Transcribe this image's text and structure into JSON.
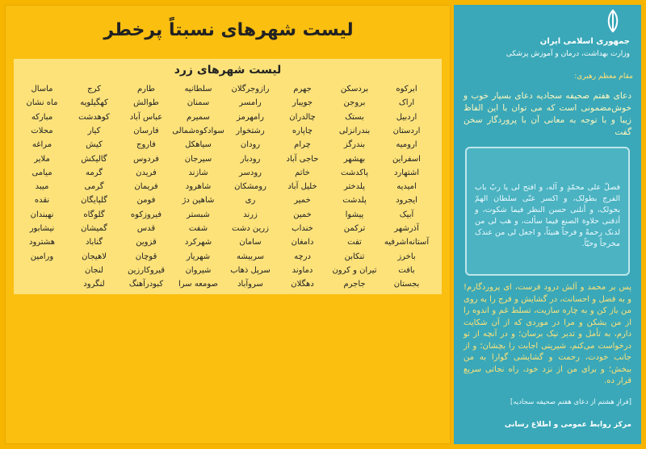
{
  "left": {
    "title": "لیست شهرهای نسبتاً پرخطر",
    "subtitle": "لیست شهرهای زرد",
    "table": {
      "rows": [
        [
          "ابرکوه",
          "بردسکن",
          "جهرم",
          "رازوجرگلان",
          "سلطانیه",
          "طارم",
          "کرج",
          "ماسال"
        ],
        [
          "اراک",
          "بروجن",
          "جویبار",
          "رامسر",
          "سمنان",
          "طوالش",
          "کهگیلویه",
          "ماه نشان"
        ],
        [
          "اردبیل",
          "بستک",
          "چالدران",
          "رامهرمز",
          "سمیرم",
          "عباس آباد",
          "کوهدشت",
          "مبارکه"
        ],
        [
          "اردستان",
          "بندرانزلی",
          "چاپاره",
          "رشتخوار",
          "سوادکوه‌شمالی",
          "فارسان",
          "کیار",
          "محلات"
        ],
        [
          "ارومیه",
          "بندرگز",
          "چرام",
          "رودان",
          "سیاهکل",
          "فاروج",
          "کیش",
          "مراغه"
        ],
        [
          "اسفراین",
          "بهشهر",
          "حاجی آباد",
          "رودبار",
          "سیرجان",
          "فردوس",
          "گالیکش",
          "ملایر"
        ],
        [
          "اشتهارد",
          "پاکدشت",
          "خاتم",
          "رودسر",
          "شازند",
          "فریدن",
          "گرمه",
          "میامی"
        ],
        [
          "امیدیه",
          "پلدختر",
          "خلیل آباد",
          "رومشکان",
          "شاهرود",
          "فریمان",
          "گرمی",
          "میبد"
        ],
        [
          "ایجرود",
          "پلدشت",
          "خمیر",
          "ری",
          "شاهین دژ",
          "فومن",
          "گلپایگان",
          "نقده"
        ],
        [
          "آبیک",
          "پیشوا",
          "خمین",
          "زرند",
          "شبستر",
          "فیروزکوه",
          "گلوگاه",
          "نهبندان"
        ],
        [
          "آذرشهر",
          "ترکمن",
          "خنداب",
          "زرین دشت",
          "شفت",
          "قدس",
          "گمیشان",
          "نیشابور"
        ],
        [
          "آستانه‌اشرفیه",
          "تفت",
          "دامغان",
          "سامان",
          "شهرکرد",
          "قزوین",
          "گناباد",
          "هشترود"
        ],
        [
          "باخرز",
          "تنکابن",
          "درچه",
          "سربیشه",
          "شهریار",
          "قوچان",
          "لاهیجان",
          "ورامین"
        ],
        [
          "بافت",
          "تیران و کرون",
          "دماوند",
          "سرپل ذهاب",
          "شیروان",
          "قیروکارزین",
          "لنجان"
        ],
        [
          "بجستان",
          "جاجرم",
          "دهگلان",
          "سروآباد",
          "صومعه سرا",
          "کبودرآهنگ",
          "لنگرود"
        ]
      ]
    }
  },
  "right": {
    "header": {
      "country": "جمهوری اسلامی ایران",
      "ministry": "وزارت بهداشت، درمان و آموزش پزشکی"
    },
    "speaker": "مقام معظم رهبری:",
    "intro": "دعای هفتم صحیفه سجادیه دعای بسیار خوب و خوش‌مضمونی است که می توان با این الفاظ زیبا و با توجه به معانی آن با پروردگار سخن گفت",
    "prayer": "فصلّ علی محمّدٍ و آله، و افتح لی یا ربّ باب الفرج بطولک، و اکسر عنّی سلطان الهمّ بحولک، و أنلنی حسن النظر فیما شکوت، و أذقنی حلاوة الصنع فیما سألت، و هب لی من لدنک رحمةً و فرجاً هنیئاً، و اجعل لی من عندک مخرجاً وحیّاً.",
    "translation": "پس بر محمد و آلش درود فرست، ای پروردگارم! و به فضل و احسانت، در گشایش و فرج را به روی من باز کن و به چاره سازیت، تسلط غم و اندوه را از من بشکن و مرا در موردی که از آن شکایت دارم، به تأمل و تدبر نیک برسان؛ و در آنچه از تو درخواست می‌کنم، شیرینی اجابت را بچشان؛ و از جانب خودت، رحمت و گشایشی گوارا به من ببخش؛ و برای من از نزد خود، راه نجاتی سریع قرار ده.",
    "source": "[فرازِ هشتم از دعای هفتم صحیفه سجادیه]",
    "footer": "مرکز روابط عمومی و اطلاع رسانی"
  }
}
